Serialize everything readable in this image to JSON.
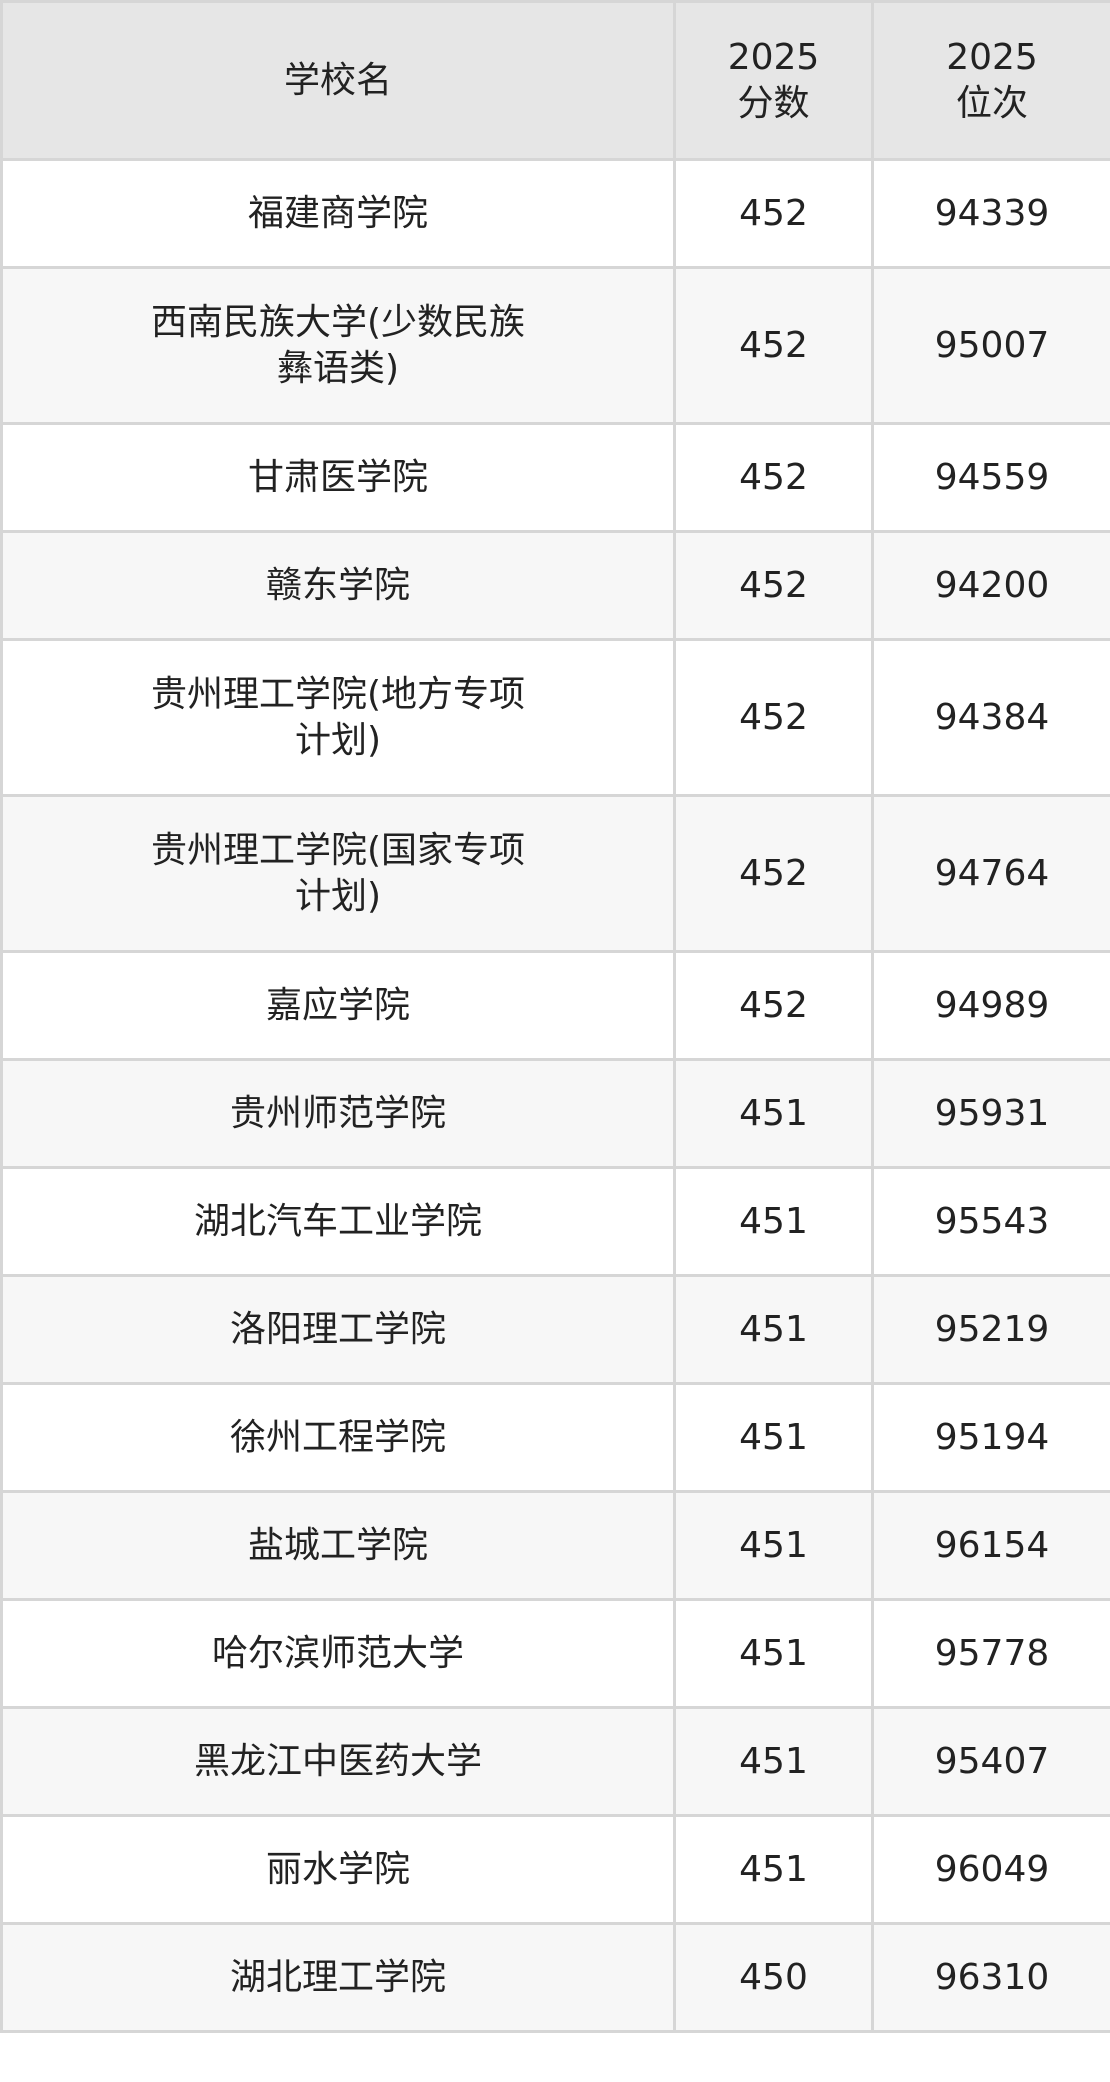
{
  "header": {
    "name": "学校名",
    "score": "2025\n分数",
    "score_year": "2025",
    "score_label": "分数",
    "rank_year": "2025",
    "rank_label": "位次"
  },
  "rows": [
    {
      "name": "福建商学院",
      "score": "452",
      "rank": "94339"
    },
    {
      "name": "西南民族大学(少数民族彝语类)",
      "score": "452",
      "rank": "95007"
    },
    {
      "name": "甘肃医学院",
      "score": "452",
      "rank": "94559"
    },
    {
      "name": "赣东学院",
      "score": "452",
      "rank": "94200"
    },
    {
      "name": "贵州理工学院(地方专项计划)",
      "score": "452",
      "rank": "94384"
    },
    {
      "name": "贵州理工学院(国家专项计划)",
      "score": "452",
      "rank": "94764"
    },
    {
      "name": "嘉应学院",
      "score": "452",
      "rank": "94989"
    },
    {
      "name": "贵州师范学院",
      "score": "451",
      "rank": "95931"
    },
    {
      "name": "湖北汽车工业学院",
      "score": "451",
      "rank": "95543"
    },
    {
      "name": "洛阳理工学院",
      "score": "451",
      "rank": "95219"
    },
    {
      "name": "徐州工程学院",
      "score": "451",
      "rank": "95194"
    },
    {
      "name": "盐城工学院",
      "score": "451",
      "rank": "96154"
    },
    {
      "name": "哈尔滨师范大学",
      "score": "451",
      "rank": "95778"
    },
    {
      "name": "黑龙江中医药大学",
      "score": "451",
      "rank": "95407"
    },
    {
      "name": "丽水学院",
      "score": "451",
      "rank": "96049"
    },
    {
      "name": "湖北理工学院",
      "score": "450",
      "rank": "96310"
    }
  ]
}
